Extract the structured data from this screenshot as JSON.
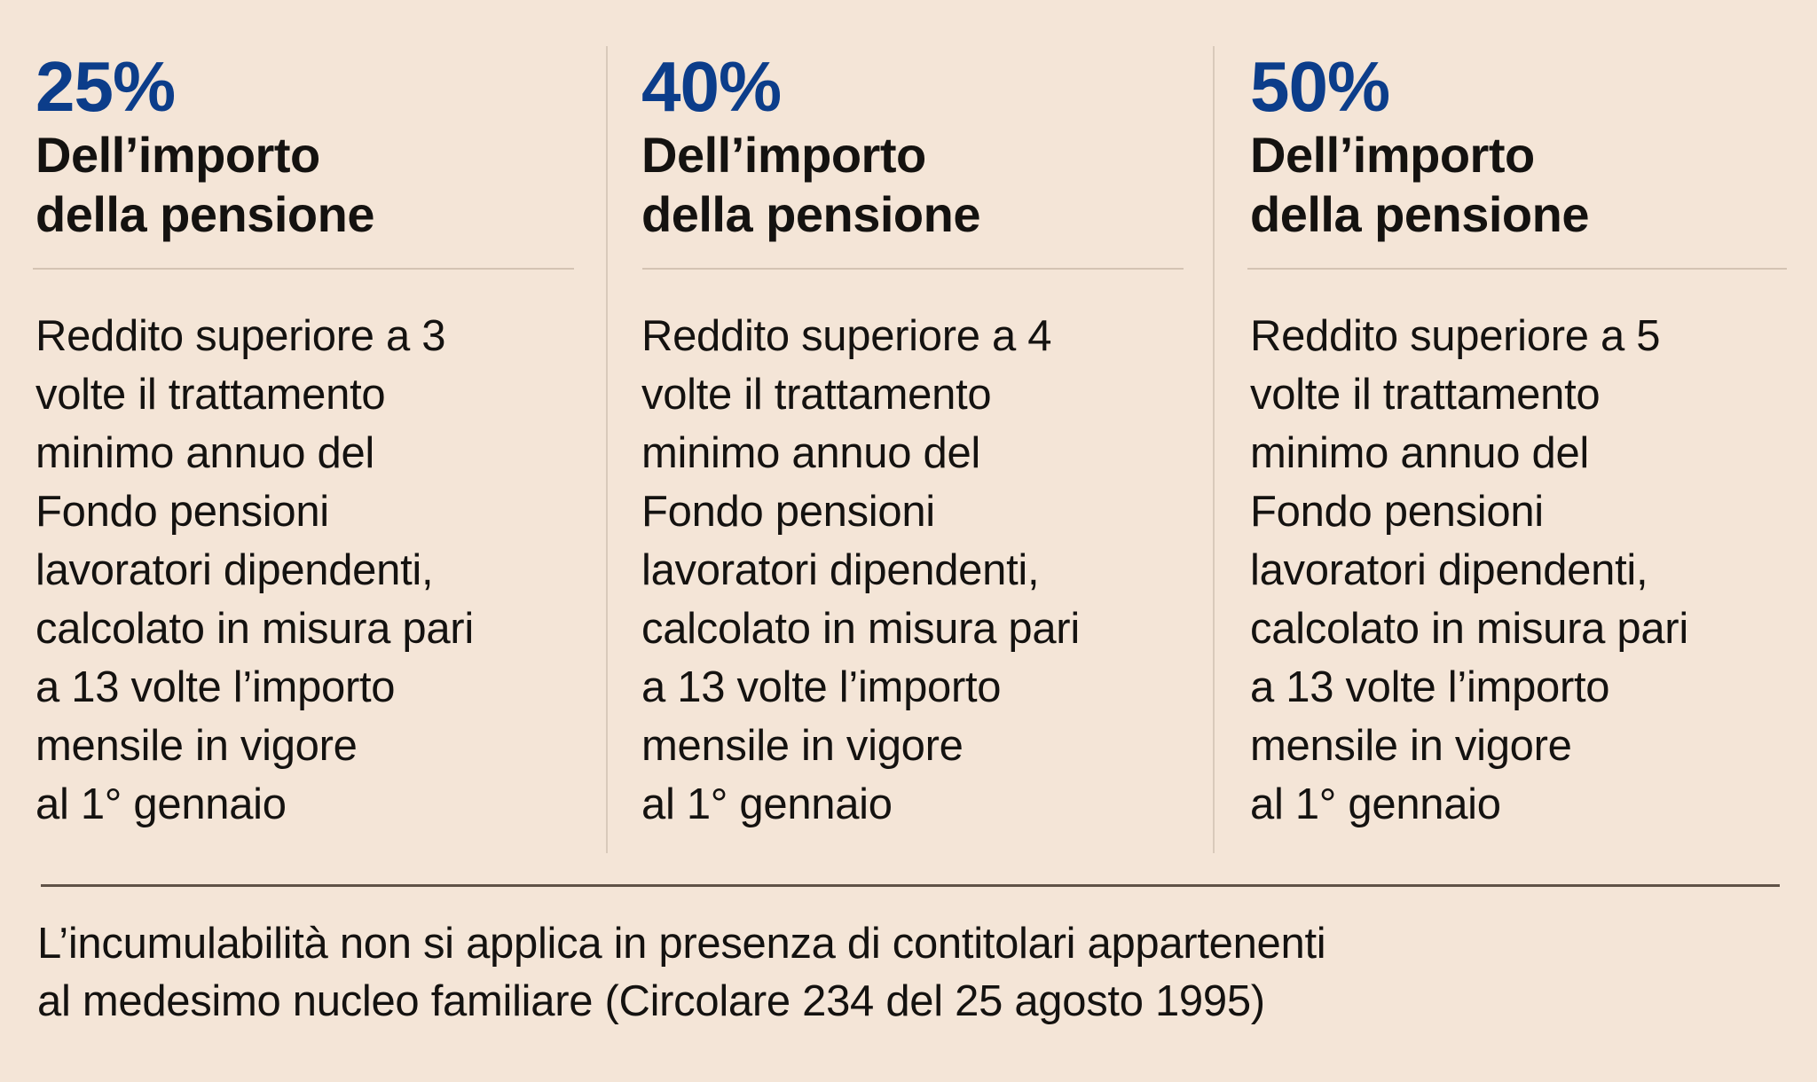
{
  "colors": {
    "background": "#f4e5d7",
    "accent_blue": "#0c3d8a",
    "text": "#141210",
    "rule_light": "#d4c3b3",
    "rule_dark": "#5f5247"
  },
  "columns": [
    {
      "percent": "25%",
      "heading_lines": [
        "Dell’importo",
        "della pensione"
      ],
      "body_lines": [
        "Reddito superiore a 3",
        "volte il trattamento",
        "minimo annuo del",
        "Fondo pensioni",
        "lavoratori dipendenti,",
        "calcolato in misura pari",
        "a 13 volte l’importo",
        "mensile in vigore",
        "al 1° gennaio"
      ]
    },
    {
      "percent": "40%",
      "heading_lines": [
        "Dell’importo",
        "della pensione"
      ],
      "body_lines": [
        "Reddito superiore a 4",
        "volte il trattamento",
        "minimo annuo del",
        "Fondo pensioni",
        "lavoratori dipendenti,",
        "calcolato in misura pari",
        "a 13 volte l’importo",
        "mensile in vigore",
        "al 1° gennaio"
      ]
    },
    {
      "percent": "50%",
      "heading_lines": [
        "Dell’importo",
        "della pensione"
      ],
      "body_lines": [
        "Reddito superiore a 5",
        "volte il trattamento",
        "minimo annuo del",
        "Fondo pensioni",
        "lavoratori dipendenti,",
        "calcolato in misura pari",
        "a 13 volte l’importo",
        "mensile in vigore",
        "al 1° gennaio"
      ]
    }
  ],
  "footnote_lines": [
    "L’incumulabilità non si applica in presenza di contitolari appartenenti",
    "al medesimo nucleo familiare (Circolare 234 del 25 agosto 1995)"
  ]
}
